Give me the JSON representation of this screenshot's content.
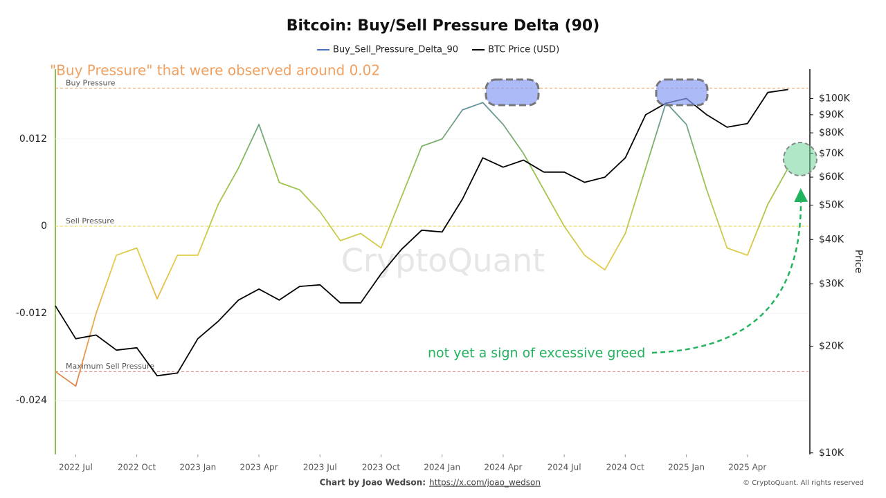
{
  "chart_data": {
    "type": "line",
    "title": "Bitcoin: Buy/Sell Pressure Delta (90)",
    "y2_axis_label": "Price",
    "x": [
      "2022-06",
      "2022-07",
      "2022-08",
      "2022-09",
      "2022-10",
      "2022-11",
      "2022-12",
      "2023-01",
      "2023-02",
      "2023-03",
      "2023-04",
      "2023-05",
      "2023-06",
      "2023-07",
      "2023-08",
      "2023-09",
      "2023-10",
      "2023-11",
      "2023-12",
      "2024-01",
      "2024-02",
      "2024-03",
      "2024-04",
      "2024-05",
      "2024-06",
      "2024-07",
      "2024-08",
      "2024-09",
      "2024-10",
      "2024-11",
      "2024-12",
      "2025-01",
      "2025-02",
      "2025-03",
      "2025-04",
      "2025-05",
      "2025-06"
    ],
    "xlim": [
      "2022-06",
      "2025-07"
    ],
    "xticks": [
      {
        "value": "2022-07",
        "label": "2022 Jul"
      },
      {
        "value": "2022-10",
        "label": "2022 Oct"
      },
      {
        "value": "2023-01",
        "label": "2023 Jan"
      },
      {
        "value": "2023-04",
        "label": "2023 Apr"
      },
      {
        "value": "2023-07",
        "label": "2023 Jul"
      },
      {
        "value": "2023-10",
        "label": "2023 Oct"
      },
      {
        "value": "2024-01",
        "label": "2024 Jan"
      },
      {
        "value": "2024-04",
        "label": "2024 Apr"
      },
      {
        "value": "2024-07",
        "label": "2024 Jul"
      },
      {
        "value": "2024-10",
        "label": "2024 Oct"
      },
      {
        "value": "2025-01",
        "label": "2025 Jan"
      },
      {
        "value": "2025-04",
        "label": "2025 Apr"
      }
    ],
    "series": [
      {
        "name": "Buy_Sell_Pressure_Delta_90",
        "color": "#4472c4",
        "gradient": [
          "#c9574f",
          "#e8954a",
          "#e6cc4a",
          "#8cc152",
          "#4a74c9"
        ],
        "values": [
          -0.02,
          -0.022,
          -0.012,
          -0.004,
          -0.003,
          -0.01,
          -0.004,
          -0.004,
          0.003,
          0.008,
          0.014,
          0.006,
          0.005,
          0.002,
          -0.002,
          -0.001,
          -0.003,
          0.004,
          0.011,
          0.012,
          0.016,
          0.017,
          0.014,
          0.01,
          0.005,
          0.0,
          -0.004,
          -0.006,
          -0.001,
          0.008,
          0.017,
          0.014,
          0.005,
          -0.003,
          -0.004,
          0.003,
          0.008
        ]
      },
      {
        "name": "BTC Price (USD)",
        "color": "#000000",
        "axis": "y2",
        "values": [
          26000,
          21000,
          21500,
          19500,
          19800,
          16500,
          16800,
          21000,
          23500,
          27000,
          29000,
          27000,
          29500,
          29800,
          26500,
          26500,
          32000,
          37500,
          42500,
          42000,
          52000,
          68000,
          64000,
          67000,
          62000,
          62000,
          58000,
          60000,
          68000,
          90000,
          97000,
          100000,
          90000,
          83000,
          85000,
          104000,
          106000
        ]
      }
    ],
    "ylim": [
      -0.0314,
      0.0216
    ],
    "yticks": [
      0.012,
      0,
      -0.012,
      -0.024
    ],
    "y2lim": [
      9900,
      121000
    ],
    "y2_log": true,
    "y2ticks": [
      {
        "value": 10000,
        "label": "$10K"
      },
      {
        "value": 20000,
        "label": "$20K"
      },
      {
        "value": 30000,
        "label": "$30K"
      },
      {
        "value": 40000,
        "label": "$40K"
      },
      {
        "value": 50000,
        "label": "$50K"
      },
      {
        "value": 60000,
        "label": "$60K"
      },
      {
        "value": 70000,
        "label": "$70K"
      },
      {
        "value": 80000,
        "label": "$80K"
      },
      {
        "value": 90000,
        "label": "$90K"
      },
      {
        "value": 100000,
        "label": "$100K"
      }
    ],
    "reference_lines": [
      {
        "label": "Buy Pressure",
        "value": 0.019,
        "color": "#e8a060"
      },
      {
        "label": "Sell Pressure",
        "value": 0,
        "color": "#e8d84a"
      },
      {
        "label": "Maximum Sell Pressure",
        "value": -0.02,
        "color": "#d9736a"
      }
    ],
    "annotations": [
      "\"Buy Pressure\" that were observed around 0.02",
      "not yet a sign of excessive greed"
    ],
    "watermark": "CryptoQuant"
  },
  "footer": {
    "credit_label": "Chart by Joao Wedson:",
    "credit_link": "https://x.com/joao_wedson",
    "copyright": "© CryptoQuant. All rights reserved"
  }
}
